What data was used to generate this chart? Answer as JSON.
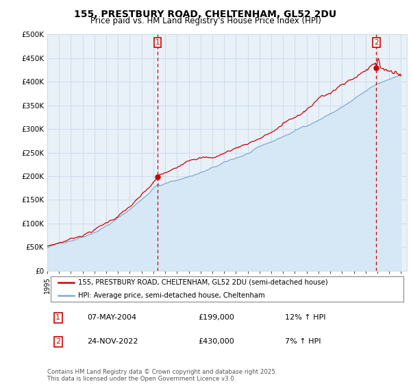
{
  "title": "155, PRESTBURY ROAD, CHELTENHAM, GL52 2DU",
  "subtitle": "Price paid vs. HM Land Registry's House Price Index (HPI)",
  "ylabel_ticks": [
    "£0",
    "£50K",
    "£100K",
    "£150K",
    "£200K",
    "£250K",
    "£300K",
    "£350K",
    "£400K",
    "£450K",
    "£500K"
  ],
  "ytick_values": [
    0,
    50000,
    100000,
    150000,
    200000,
    250000,
    300000,
    350000,
    400000,
    450000,
    500000
  ],
  "ylim": [
    0,
    500000
  ],
  "x_start_year": 1995,
  "x_end_year": 2025,
  "sale1_date": "07-MAY-2004",
  "sale1_price": 199000,
  "sale1_hpi": "12% ↑ HPI",
  "sale1_x": 2004.35,
  "sale2_date": "24-NOV-2022",
  "sale2_price": 430000,
  "sale2_hpi": "7% ↑ HPI",
  "sale2_x": 2022.9,
  "legend_label1": "155, PRESTBURY ROAD, CHELTENHAM, GL52 2DU (semi-detached house)",
  "legend_label2": "HPI: Average price, semi-detached house, Cheltenham",
  "footer": "Contains HM Land Registry data © Crown copyright and database right 2025.\nThis data is licensed under the Open Government Licence v3.0.",
  "line1_color": "#cc0000",
  "line2_color": "#7aadd0",
  "fill_color": "#d6e8f5",
  "vline_color": "#cc0000",
  "grid_color": "#c8d8e8",
  "bg_color": "#e8f0f8",
  "background_color": "#ffffff"
}
